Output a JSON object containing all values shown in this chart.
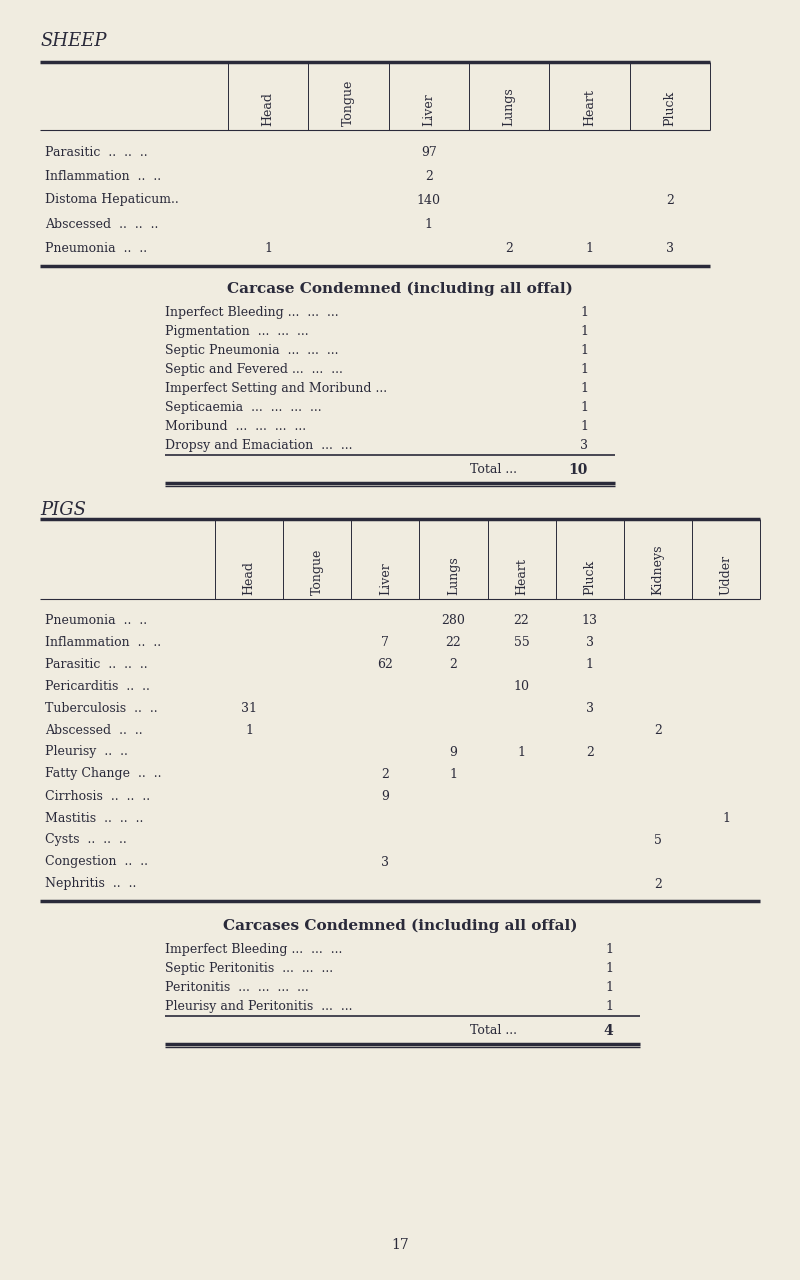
{
  "bg_color": "#f0ece0",
  "text_color": "#2a2a3a",
  "page_number": "17",
  "sheep": {
    "section_title": "SHEEP",
    "columns": [
      "Head",
      "Tongue",
      "Liver",
      "Lungs",
      "Heart",
      "Pluck"
    ],
    "rows": [
      {
        "label": "Parasitic  ..  ..  ..",
        "Head": "",
        "Tongue": "",
        "Liver": "97",
        "Lungs": "",
        "Heart": "",
        "Pluck": ""
      },
      {
        "label": "Inflammation  ..  ..",
        "Head": "",
        "Tongue": "",
        "Liver": "2",
        "Lungs": "",
        "Heart": "",
        "Pluck": ""
      },
      {
        "label": "Distoma Hepaticum..",
        "Head": "",
        "Tongue": "",
        "Liver": "140",
        "Lungs": "",
        "Heart": "",
        "Pluck": "2"
      },
      {
        "label": "Abscessed  ..  ..  ..",
        "Head": "",
        "Tongue": "",
        "Liver": "1",
        "Lungs": "",
        "Heart": "",
        "Pluck": ""
      },
      {
        "label": "Pneumonia  ..  ..",
        "Head": "1",
        "Tongue": "",
        "Liver": "",
        "Lungs": "2",
        "Heart": "1",
        "Pluck": "3"
      }
    ],
    "condemned_title": "Carcase Condemned (including all offal)",
    "condemned_rows": [
      {
        "label": "Inperfect Bleeding ...  ...  ...",
        "value": "1"
      },
      {
        "label": "Pigmentation  ...  ...  ...",
        "value": "1"
      },
      {
        "label": "Septic Pneumonia  ...  ...  ...",
        "value": "1"
      },
      {
        "label": "Septic and Fevered ...  ...  ...",
        "value": "1"
      },
      {
        "label": "Imperfect Setting and Moribund ...",
        "value": "1"
      },
      {
        "label": "Septicaemia  ...  ...  ...  ...",
        "value": "1"
      },
      {
        "label": "Moribund  ...  ...  ...  ...",
        "value": "1"
      },
      {
        "label": "Dropsy and Emaciation  ...  ...",
        "value": "3"
      }
    ],
    "total_label": "Total ...",
    "total_value": "10"
  },
  "pigs": {
    "section_title": "PIGS",
    "columns": [
      "Head",
      "Tongue",
      "Liver",
      "Lungs",
      "Heart",
      "Pluck",
      "Kidneys",
      "Udder"
    ],
    "rows": [
      {
        "label": "Pneumonia  ..  ..",
        "Head": "",
        "Tongue": "",
        "Liver": "",
        "Lungs": "280",
        "Heart": "22",
        "Pluck": "13",
        "Kidneys": "",
        "Udder": ""
      },
      {
        "label": "Inflammation  ..  ..",
        "Head": "",
        "Tongue": "",
        "Liver": "7",
        "Lungs": "22",
        "Heart": "55",
        "Pluck": "3",
        "Kidneys": "",
        "Udder": ""
      },
      {
        "label": "Parasitic  ..  ..  ..",
        "Head": "",
        "Tongue": "",
        "Liver": "62",
        "Lungs": "2",
        "Heart": "",
        "Pluck": "1",
        "Kidneys": "",
        "Udder": ""
      },
      {
        "label": "Pericarditis  ..  ..",
        "Head": "",
        "Tongue": "",
        "Liver": "",
        "Lungs": "",
        "Heart": "10",
        "Pluck": "",
        "Kidneys": "",
        "Udder": ""
      },
      {
        "label": "Tuberculosis  ..  ..",
        "Head": "31",
        "Tongue": "",
        "Liver": "",
        "Lungs": "",
        "Heart": "",
        "Pluck": "3",
        "Kidneys": "",
        "Udder": ""
      },
      {
        "label": "Abscessed  ..  ..",
        "Head": "1",
        "Tongue": "",
        "Liver": "",
        "Lungs": "",
        "Heart": "",
        "Pluck": "",
        "Kidneys": "2",
        "Udder": ""
      },
      {
        "label": "Pleurisy  ..  ..",
        "Head": "",
        "Tongue": "",
        "Liver": "",
        "Lungs": "9",
        "Heart": "1",
        "Pluck": "2",
        "Kidneys": "",
        "Udder": ""
      },
      {
        "label": "Fatty Change  ..  ..",
        "Head": "",
        "Tongue": "",
        "Liver": "2",
        "Lungs": "1",
        "Heart": "",
        "Pluck": "",
        "Kidneys": "",
        "Udder": ""
      },
      {
        "label": "Cirrhosis  ..  ..  ..",
        "Head": "",
        "Tongue": "",
        "Liver": "9",
        "Lungs": "",
        "Heart": "",
        "Pluck": "",
        "Kidneys": "",
        "Udder": ""
      },
      {
        "label": "Mastitis  ..  ..  ..",
        "Head": "",
        "Tongue": "",
        "Liver": "",
        "Lungs": "",
        "Heart": "",
        "Pluck": "",
        "Kidneys": "",
        "Udder": "1"
      },
      {
        "label": "Cysts  ..  ..  ..",
        "Head": "",
        "Tongue": "",
        "Liver": "",
        "Lungs": "",
        "Heart": "",
        "Pluck": "",
        "Kidneys": "5",
        "Udder": ""
      },
      {
        "label": "Congestion  ..  ..",
        "Head": "",
        "Tongue": "",
        "Liver": "3",
        "Lungs": "",
        "Heart": "",
        "Pluck": "",
        "Kidneys": "",
        "Udder": ""
      },
      {
        "label": "Nephritis  ..  ..",
        "Head": "",
        "Tongue": "",
        "Liver": "",
        "Lungs": "",
        "Heart": "",
        "Pluck": "",
        "Kidneys": "2",
        "Udder": ""
      }
    ],
    "condemned_title": "Carcases Condemned (including all offal)",
    "condemned_rows": [
      {
        "label": "Imperfect Bleeding ...  ...  ...",
        "value": "1"
      },
      {
        "label": "Septic Peritonitis  ...  ...  ...",
        "value": "1"
      },
      {
        "label": "Peritonitis  ...  ...  ...  ...",
        "value": "1"
      },
      {
        "label": "Pleurisy and Peritonitis  ...  ...",
        "value": "1"
      }
    ],
    "total_label": "Total ...",
    "total_value": "4"
  }
}
